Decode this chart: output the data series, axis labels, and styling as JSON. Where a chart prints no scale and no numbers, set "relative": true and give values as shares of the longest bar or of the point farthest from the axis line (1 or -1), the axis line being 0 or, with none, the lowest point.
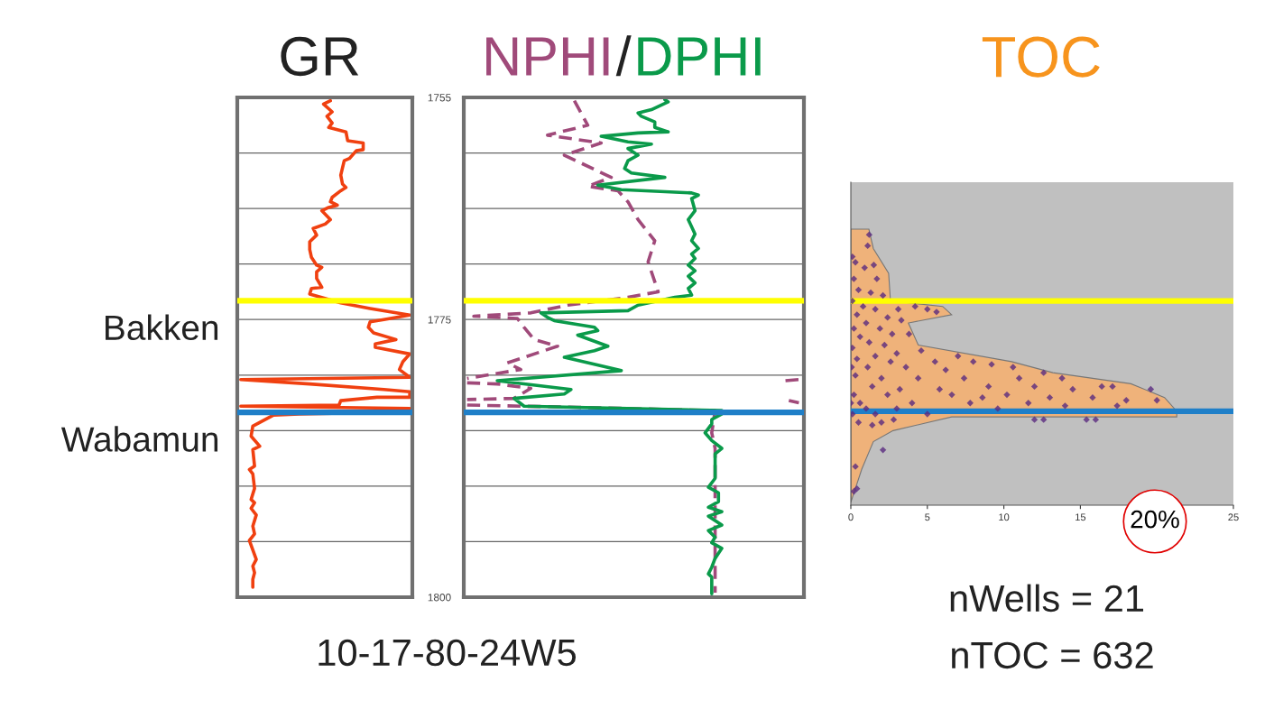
{
  "chart_data": [
    {
      "type": "line",
      "title": "GR",
      "orientation": "horizontal",
      "relative": true,
      "ylim": [
        1800,
        1755
      ],
      "yticks": [
        1755,
        {
          "value": 1760,
          "label": null
        },
        {
          "value": 1765,
          "label": null
        },
        {
          "value": 1770,
          "label": null
        },
        1775,
        {
          "value": 1780,
          "label": null
        },
        {
          "value": 1785,
          "label": null
        },
        {
          "value": 1790,
          "label": null
        },
        {
          "value": 1795,
          "label": null
        },
        1800
      ],
      "grid": "y",
      "tick_labels": false,
      "marker": "none",
      "series": [
        {
          "color": "#f04010",
          "line_style": "solid",
          "x": [
            1755.3,
            1755.6,
            1756.3,
            1756.7,
            1757.3,
            1757.7,
            1758.1,
            1758.9,
            1759.1,
            1759.7,
            1759.8,
            1760.5,
            1760.7,
            1762.0,
            1762.8,
            1763.1,
            1763.4,
            1764.0,
            1764.4,
            1764.7,
            1764.9,
            1765.2,
            1766.0,
            1766.4,
            1766.8,
            1767.4,
            1768.0,
            1768.7,
            1769.4,
            1770.1,
            1770.3,
            1770.7,
            1771.3,
            1772.1,
            1772.2,
            1772.7,
            1773.5,
            1774.0,
            1774.6,
            1775.0,
            1775.2,
            1775.7,
            1776.2,
            1776.8,
            1777.2,
            1777.5,
            1778.1,
            1778.8,
            1779.5,
            1780.2,
            1780.4,
            1780.8,
            1781.3,
            1781.5,
            1782.0,
            1782.0,
            1782.3,
            1782.7,
            1782.8,
            1783.0,
            1783.3,
            1783.5,
            1783.6,
            1784.6,
            1785.5,
            1786.4,
            1786.7,
            1788.2,
            1788.5,
            1788.9,
            1790.2,
            1791.2,
            1791.5,
            1792.0,
            1792.6,
            1793.6,
            1794.3,
            1794.9,
            1796.6,
            1797.2,
            1797.8,
            1798.4,
            1799.1
          ],
          "values": [
            0.54,
            0.5,
            0.55,
            0.52,
            0.55,
            0.53,
            0.63,
            0.64,
            0.73,
            0.73,
            0.69,
            0.65,
            0.62,
            0.6,
            0.61,
            0.63,
            0.6,
            0.55,
            0.54,
            0.58,
            0.53,
            0.49,
            0.54,
            0.51,
            0.44,
            0.46,
            0.42,
            0.42,
            0.43,
            0.46,
            0.49,
            0.46,
            0.46,
            0.49,
            0.43,
            0.42,
            0.6,
            0.77,
            1.0,
            0.85,
            0.77,
            0.76,
            0.79,
            0.92,
            0.8,
            0.8,
            1.0,
            0.96,
            0.94,
            1.0,
            0.02,
            0.42,
            0.85,
            1.0,
            1.0,
            0.81,
            0.6,
            0.59,
            0.02,
            1.0,
            1.0,
            0.36,
            0.21,
            0.09,
            0.08,
            0.13,
            0.09,
            0.1,
            0.07,
            0.09,
            0.1,
            0.08,
            0.1,
            0.08,
            0.11,
            0.09,
            0.1,
            0.07,
            0.11,
            0.09,
            0.1,
            0.09,
            0.09
          ]
        }
      ],
      "ref_lines": [
        {
          "axis": "y",
          "value": 1773.3,
          "label": "Bakken",
          "color": "#ffff00"
        },
        {
          "axis": "y",
          "value": 1783.35,
          "label": "Wabamun",
          "color": "#1f7fc8"
        }
      ],
      "annotations": [
        "10-17-80-24W5"
      ]
    },
    {
      "type": "line",
      "title": "/",
      "orientation": "horizontal",
      "relative": true,
      "ylim": [
        1800,
        1755
      ],
      "yticks": [
        1755,
        {
          "value": 1760,
          "label": null
        },
        {
          "value": 1765,
          "label": null
        },
        {
          "value": 1770,
          "label": null
        },
        1775,
        {
          "value": 1780,
          "label": null
        },
        {
          "value": 1785,
          "label": null
        },
        {
          "value": 1790,
          "label": null
        },
        {
          "value": 1795,
          "label": null
        },
        1800
      ],
      "grid": "y",
      "tick_labels": "y",
      "marker": "none",
      "series": [
        {
          "name": "NPHI",
          "color": "#a04a7a",
          "line_style": "dashed",
          "x": [
            1755.3,
            1757.5,
            1758.4,
            1758.8,
            1759.1,
            1760.2,
            1762.2,
            1763.0,
            1763.4,
            1764.4,
            1766.0,
            1767.9,
            1769.8,
            1772.5,
            1773.0,
            1773.7,
            1774.4,
            1774.7,
            1774.9,
            1775.7,
            1776.8,
            1777.4,
            1778.9,
            1779.5,
            1780.3,
            1780.35,
            1780.5,
            1780.4,
            1780.45,
            1780.7,
            1780.8,
            1781.2,
            1782.1,
            1782.2,
            1782.25,
            1782.3,
            1782.5,
            1782.6,
            1782.7,
            1782.9,
            1783.2,
            1785.2,
            1786.6,
            1790.6,
            1799.6
          ],
          "values": [
            0.33,
            0.37,
            0.25,
            0.34,
            0.41,
            0.3,
            0.44,
            0.37,
            0.46,
            0.49,
            0.52,
            0.57,
            0.55,
            0.58,
            0.49,
            0.31,
            0.2,
            0.03,
            0.16,
            0.18,
            0.21,
            0.28,
            0.13,
            0.17,
            0.01,
            null,
            0.96,
            1.0,
            null,
            0.01,
            0.1,
            0.2,
            0.15,
            0.01,
            null,
            0.97,
            1.0,
            null,
            0.01,
            0.34,
            0.75,
            0.74,
            0.75,
            0.75,
            0.75
          ]
        },
        {
          "name": "DPHI",
          "color": "#0a9a4a",
          "line_style": "solid",
          "x": [
            1755.2,
            1755.4,
            1756.1,
            1756.4,
            1756.7,
            1757.2,
            1757.7,
            1758.1,
            1758.2,
            1758.5,
            1759.0,
            1759.2,
            1759.6,
            1760.2,
            1760.7,
            1761.4,
            1761.8,
            1762.2,
            1762.9,
            1763.3,
            1763.6,
            1763.8,
            1764.1,
            1765.2,
            1766.0,
            1767.3,
            1767.9,
            1768.6,
            1769.1,
            1769.5,
            1770.1,
            1770.6,
            1771.1,
            1771.7,
            1772.2,
            1772.8,
            1773.0,
            1773.7,
            1774.2,
            1774.4,
            1774.8,
            1775.1,
            1775.7,
            1776.0,
            1776.4,
            1777.4,
            1777.8,
            1778.4,
            1779.6,
            1780.5,
            1781.3,
            1781.7,
            1782.1,
            1782.8,
            1783.2,
            1783.5,
            1784.0,
            1784.4,
            1785.2,
            1785.9,
            1786.6,
            1787.1,
            1787.9,
            1789.3,
            1790.1,
            1790.6,
            1791.4,
            1791.9,
            1792.3,
            1792.7,
            1793.5,
            1794.0,
            1794.6,
            1795.1,
            1795.6,
            1796.5,
            1797.3,
            1797.9,
            1798.2,
            1799.0,
            1799.7
          ],
          "values": [
            0.6,
            0.61,
            0.56,
            0.52,
            0.53,
            0.57,
            0.57,
            0.61,
            0.52,
            0.41,
            0.49,
            0.56,
            0.49,
            0.52,
            0.49,
            0.48,
            0.5,
            0.6,
            0.4,
            0.47,
            0.68,
            0.7,
            0.68,
            0.69,
            0.67,
            0.69,
            0.68,
            0.7,
            0.68,
            0.69,
            0.67,
            0.69,
            0.67,
            0.69,
            0.67,
            0.68,
            0.63,
            0.52,
            0.49,
            0.23,
            0.25,
            0.27,
            0.39,
            0.4,
            0.34,
            0.43,
            0.39,
            0.3,
            0.47,
            0.1,
            0.32,
            0.3,
            0.15,
            0.18,
            0.77,
            0.77,
            0.74,
            0.74,
            0.72,
            0.74,
            0.77,
            0.75,
            0.75,
            0.75,
            0.73,
            0.76,
            0.76,
            0.73,
            0.77,
            0.73,
            0.77,
            0.73,
            0.75,
            0.74,
            0.77,
            0.75,
            0.74,
            0.73,
            0.74,
            0.74,
            0.74
          ]
        }
      ],
      "ref_lines": [
        {
          "axis": "y",
          "value": 1773.3,
          "color": "#ffff00"
        },
        {
          "axis": "y",
          "value": 1783.35,
          "color": "#1f7fc8"
        }
      ]
    },
    {
      "type": "scatter",
      "title": "TOC",
      "relative": true,
      "xlim": [
        0,
        25
      ],
      "xticks": [
        0,
        5,
        10,
        15,
        {
          "value": 20,
          "label": null
        },
        25
      ],
      "tick_labels": "x",
      "series": [
        {
          "type": "area",
          "color": "#efb27a",
          "x": [
            0,
            1.18,
            1.47,
            2.47,
            2.59,
            6.0,
            6.59,
            3.76,
            4.41,
            10.5,
            13.2,
            18.3,
            20.5,
            21.3,
            21.3,
            6.59,
            2.76,
            1.47,
            0.71,
            0
          ],
          "values": [
            1.0,
            1.0,
            0.93,
            0.84,
            0.74,
            0.72,
            0.69,
            0.66,
            0.58,
            0.52,
            0.48,
            0.44,
            0.39,
            0.34,
            0.32,
            0.32,
            0.27,
            0.23,
            0.13,
            0.01
          ]
        },
        {
          "color": "#5a2a80",
          "marker": "diamond",
          "x": [
            1.2,
            1.1,
            0.3,
            1.5,
            0.9,
            0.2,
            1.7,
            0.5,
            1.3,
            2.1,
            0.1,
            0.8,
            1.6,
            3.1,
            4.2,
            5.0,
            5.6,
            0.4,
            2.4,
            1.0,
            3.3,
            0.2,
            1.9,
            2.7,
            0.6,
            3.8,
            1.2,
            2.2,
            0.1,
            4.6,
            3.0,
            1.6,
            7.0,
            0.4,
            2.6,
            5.5,
            8.0,
            9.2,
            1.1,
            3.6,
            6.2,
            10.6,
            12.6,
            0.3,
            2.0,
            4.4,
            7.4,
            11.0,
            13.8,
            16.4,
            17.1,
            1.4,
            3.2,
            5.8,
            9.0,
            12.0,
            14.5,
            19.6,
            0.2,
            2.4,
            6.6,
            8.6,
            10.2,
            13.0,
            15.8,
            18.0,
            20.0,
            0.6,
            4.0,
            7.8,
            11.6,
            14.0,
            17.4,
            1.0,
            3.0,
            9.6,
            0.1,
            1.6,
            5.0,
            12.0,
            12.6,
            15.4,
            16.0,
            0.5,
            2.0,
            1.4,
            2.8,
            2.1,
            0.3,
            0.4,
            0.2,
            0.1,
            0.05,
            0.0
          ],
          "values": [
            0.98,
            0.94,
            0.88,
            0.87,
            0.86,
            0.82,
            0.82,
            0.78,
            0.77,
            0.76,
            0.74,
            0.72,
            0.71,
            0.71,
            0.72,
            0.71,
            0.7,
            0.69,
            0.68,
            0.66,
            0.67,
            0.64,
            0.64,
            0.62,
            0.61,
            0.62,
            0.59,
            0.58,
            0.57,
            0.56,
            0.55,
            0.54,
            0.54,
            0.53,
            0.52,
            0.52,
            0.52,
            0.51,
            0.5,
            0.5,
            0.49,
            0.5,
            0.48,
            0.47,
            0.46,
            0.46,
            0.46,
            0.46,
            0.46,
            0.43,
            0.43,
            0.43,
            0.42,
            0.42,
            0.43,
            0.43,
            0.42,
            0.42,
            0.4,
            0.4,
            0.4,
            0.39,
            0.4,
            0.39,
            0.39,
            0.38,
            0.38,
            0.37,
            0.37,
            0.37,
            0.37,
            0.36,
            0.36,
            0.35,
            0.35,
            0.35,
            0.33,
            0.33,
            0.33,
            0.31,
            0.31,
            0.31,
            0.31,
            0.3,
            0.3,
            0.29,
            0.31,
            0.2,
            0.14,
            0.06,
            0.05,
            0.9,
            0.5,
            0.37
          ]
        }
      ],
      "ref_lines": [
        {
          "axis": "y",
          "value": 0.74,
          "color": "#ffff00"
        },
        {
          "axis": "y",
          "value": 0.34,
          "color": "#1f7fc8"
        }
      ],
      "annotations": [
        "20%",
        "nWells = 21",
        "nTOC = 632"
      ]
    }
  ]
}
